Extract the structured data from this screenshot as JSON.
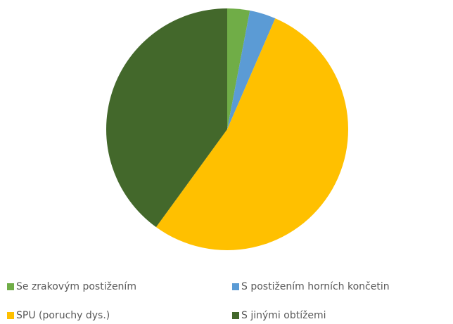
{
  "chart_data": {
    "type": "pie",
    "categories": [
      "Se zrakovým postižením",
      "S postižením horních končetin",
      "SPU (poruchy dys.)",
      "S jinými obtížemi"
    ],
    "values": [
      3,
      3.5,
      53.5,
      40
    ],
    "colors": [
      "#70ad47",
      "#5b9bd5",
      "#ffc000",
      "#43682b"
    ],
    "legend": "bottom"
  }
}
